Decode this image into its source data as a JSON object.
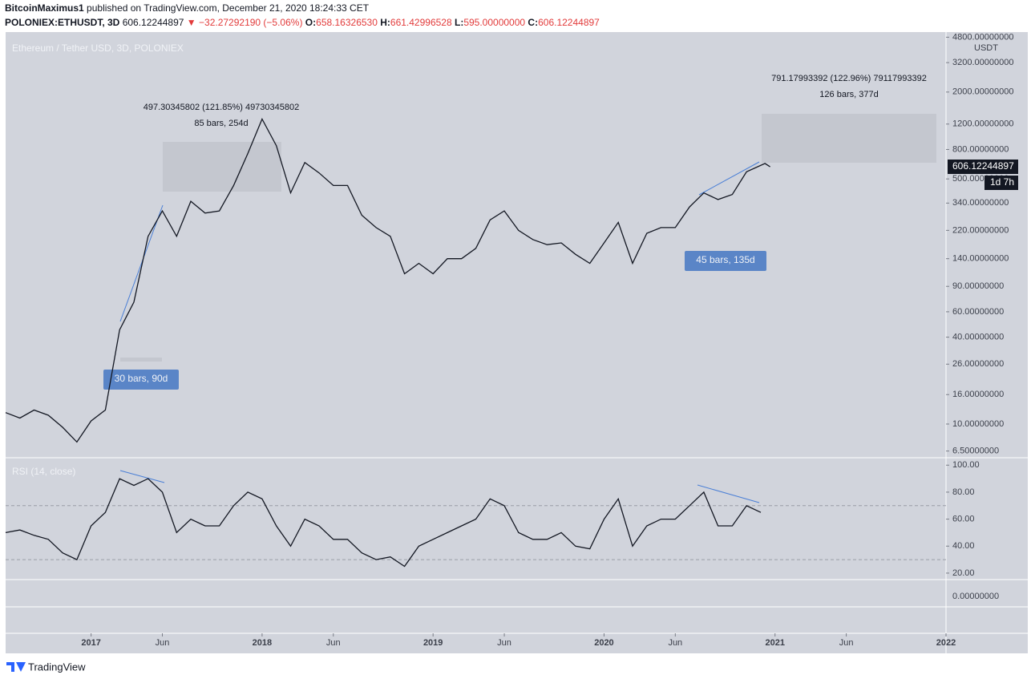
{
  "header": {
    "publisher": "BitcoinMaximus1",
    "published": "published on TradingView.com, December 21, 2020 18:24:33 CET",
    "symbol": "POLONIEX:ETHUSDT, 3D",
    "last": "606.12244897",
    "change": "▼ −32.27292190 (−5.06%)",
    "o_label": "O:",
    "o": "658.16326530",
    "h_label": "H:",
    "h": "661.42996528",
    "l_label": "L:",
    "l": "595.00000000",
    "c_label": "C:",
    "c": "606.12244897"
  },
  "annotations": {
    "measure_1": {
      "change": "497.30345802 (121.85%) 49730345802",
      "bars": "85 bars, 254d"
    },
    "measure_2": {
      "change": "791.17993392 (122.96%) 79117993392",
      "bars": "126 bars, 377d"
    },
    "label_1": "30 bars, 90d",
    "label_2": "45 bars, 135d"
  },
  "pane3_tick": "0.00000000",
  "footer": {
    "brand": "TradingView"
  },
  "chart_data": [
    {
      "type": "line",
      "title": "Ethereum / Tether USD, 3D, POLONIEX",
      "y_unit": "USDT",
      "log_scale": true,
      "countdown": "1d 7h",
      "x": [
        "2016-07",
        "2016-08",
        "2016-09",
        "2016-10",
        "2016-11",
        "2016-12",
        "2017-01",
        "2017-02",
        "2017-03",
        "2017-04",
        "2017-05",
        "2017-06",
        "2017-07",
        "2017-08",
        "2017-09",
        "2017-10",
        "2017-11",
        "2017-12",
        "2018-01",
        "2018-02",
        "2018-03",
        "2018-04",
        "2018-05",
        "2018-06",
        "2018-07",
        "2018-08",
        "2018-09",
        "2018-10",
        "2018-11",
        "2018-12",
        "2019-01",
        "2019-02",
        "2019-03",
        "2019-04",
        "2019-05",
        "2019-06",
        "2019-07",
        "2019-08",
        "2019-09",
        "2019-10",
        "2019-11",
        "2019-12",
        "2020-01",
        "2020-02",
        "2020-03",
        "2020-04",
        "2020-05",
        "2020-06",
        "2020-07",
        "2020-08",
        "2020-09",
        "2020-10",
        "2020-11",
        "2020-12-10",
        "2020-12-21"
      ],
      "series": [
        {
          "color": "#131722",
          "values": [
            12,
            11,
            12.5,
            11.5,
            9.5,
            7.5,
            10.5,
            12.5,
            45,
            70,
            200,
            300,
            200,
            350,
            290,
            300,
            450,
            750,
            1300,
            850,
            400,
            650,
            550,
            450,
            450,
            280,
            230,
            200,
            110,
            130,
            110,
            140,
            140,
            165,
            260,
            300,
            220,
            190,
            175,
            180,
            150,
            130,
            180,
            250,
            130,
            210,
            230,
            230,
            320,
            400,
            360,
            390,
            560,
            640,
            606.12244897
          ]
        }
      ],
      "xlim": [
        "2016-07",
        "2022-01"
      ],
      "ylim": [
        5.84,
        5210
      ],
      "xticks": [
        {
          "value": "2017-01",
          "label": "2017"
        },
        {
          "value": "2017-06",
          "label": "Jun"
        },
        {
          "value": "2018-01",
          "label": "2018"
        },
        {
          "value": "2018-06",
          "label": "Jun"
        },
        {
          "value": "2019-01",
          "label": "2019"
        },
        {
          "value": "2019-06",
          "label": "Jun"
        },
        {
          "value": "2020-01",
          "label": "2020"
        },
        {
          "value": "2020-06",
          "label": "Jun"
        },
        {
          "value": "2021-01",
          "label": "2021"
        },
        {
          "value": "2021-06",
          "label": "Jun"
        },
        {
          "value": "2022-01",
          "label": "2022"
        }
      ],
      "yticks": [
        {
          "value": 4800,
          "label": "4800.00000000"
        },
        {
          "value": 3200,
          "label": "3200.00000000"
        },
        {
          "value": 2000,
          "label": "2000.00000000"
        },
        {
          "value": 1200,
          "label": "1200.00000000"
        },
        {
          "value": 800,
          "label": "800.00000000"
        },
        {
          "value": 500,
          "label": "500.00000000"
        },
        {
          "value": 340,
          "label": "340.00000000"
        },
        {
          "value": 220,
          "label": "220.00000000"
        },
        {
          "value": 140,
          "label": "140.00000000"
        },
        {
          "value": 90,
          "label": "90.00000000"
        },
        {
          "value": 60,
          "label": "60.00000000"
        },
        {
          "value": 40,
          "label": "40.00000000"
        },
        {
          "value": 26,
          "label": "26.00000000"
        },
        {
          "value": 16,
          "label": "16.00000000"
        },
        {
          "value": 10,
          "label": "10.00000000"
        },
        {
          "value": 6.5,
          "label": "6.50000000"
        }
      ]
    },
    {
      "type": "line",
      "title": "RSI (14, close)",
      "log_scale": false,
      "bands": [
        70,
        30
      ],
      "x": [
        "2016-07",
        "2016-08",
        "2016-09",
        "2016-10",
        "2016-11",
        "2016-12",
        "2017-01",
        "2017-02",
        "2017-03",
        "2017-04",
        "2017-05",
        "2017-06",
        "2017-07",
        "2017-08",
        "2017-09",
        "2017-10",
        "2017-11",
        "2017-12",
        "2018-01",
        "2018-02",
        "2018-03",
        "2018-04",
        "2018-05",
        "2018-06",
        "2018-07",
        "2018-08",
        "2018-09",
        "2018-10",
        "2018-11",
        "2018-12",
        "2019-01",
        "2019-02",
        "2019-03",
        "2019-04",
        "2019-05",
        "2019-06",
        "2019-07",
        "2019-08",
        "2019-09",
        "2019-10",
        "2019-11",
        "2019-12",
        "2020-01",
        "2020-02",
        "2020-03",
        "2020-04",
        "2020-05",
        "2020-06",
        "2020-07",
        "2020-08",
        "2020-09",
        "2020-10",
        "2020-11",
        "2020-12"
      ],
      "series": [
        {
          "color": "#131722",
          "values": [
            50,
            52,
            48,
            45,
            35,
            30,
            55,
            65,
            90,
            85,
            90,
            80,
            50,
            60,
            55,
            55,
            70,
            80,
            75,
            55,
            40,
            60,
            55,
            45,
            45,
            35,
            30,
            32,
            25,
            40,
            45,
            50,
            55,
            60,
            75,
            70,
            50,
            45,
            45,
            50,
            40,
            38,
            60,
            75,
            40,
            55,
            60,
            60,
            70,
            80,
            55,
            55,
            70,
            65
          ]
        }
      ],
      "xlim": [
        "2016-07",
        "2022-01"
      ],
      "ylim": [
        15.2,
        105.5
      ],
      "yticks": [
        {
          "value": 100,
          "label": "100.00"
        },
        {
          "value": 80,
          "label": "80.00"
        },
        {
          "value": 60,
          "label": "60.00"
        },
        {
          "value": 40,
          "label": "40.00"
        },
        {
          "value": 20,
          "label": "20.00"
        }
      ]
    }
  ]
}
